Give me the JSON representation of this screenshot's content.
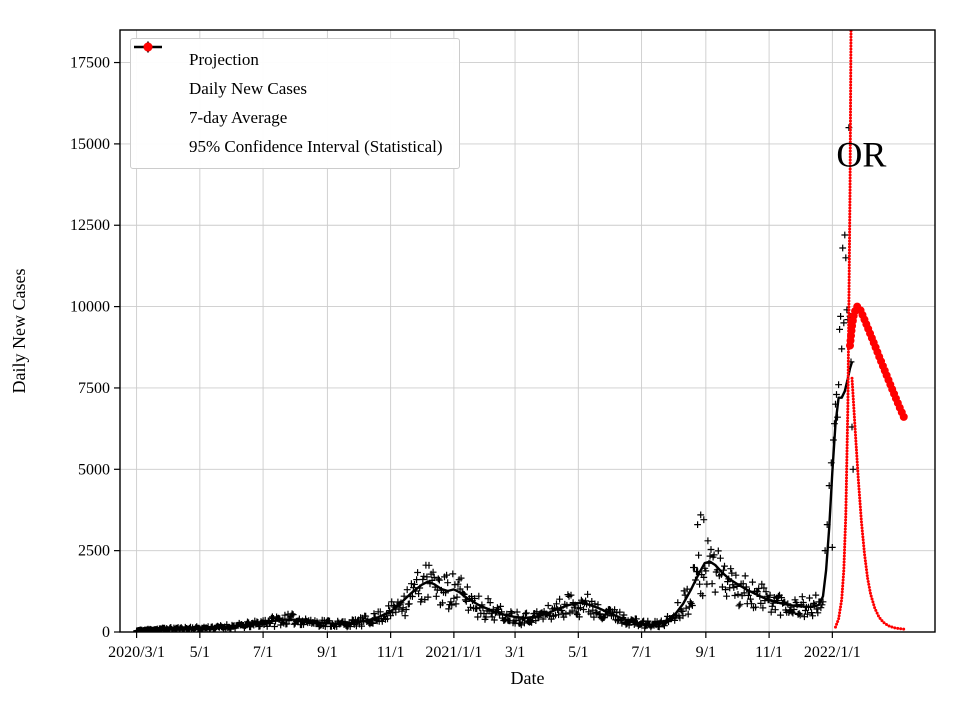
{
  "chart_data": {
    "type": "line+scatter",
    "title": "",
    "xlabel": "Date",
    "ylabel": "Daily New Cases",
    "x_unit": "days since 2020/3/1",
    "xlim": [
      -16,
      770
    ],
    "ylim": [
      0,
      18500
    ],
    "grid": true,
    "grid_color": "#cccccc",
    "yticks": [
      0,
      2500,
      5000,
      7500,
      10000,
      12500,
      15000,
      17500
    ],
    "xticks": [
      {
        "day": 0,
        "label": "2020/3/1"
      },
      {
        "day": 61,
        "label": "5/1"
      },
      {
        "day": 122,
        "label": "7/1"
      },
      {
        "day": 184,
        "label": "9/1"
      },
      {
        "day": 245,
        "label": "11/1"
      },
      {
        "day": 306,
        "label": "2021/1/1"
      },
      {
        "day": 365,
        "label": "3/1"
      },
      {
        "day": 426,
        "label": "5/1"
      },
      {
        "day": 487,
        "label": "7/1"
      },
      {
        "day": 549,
        "label": "9/1"
      },
      {
        "day": 610,
        "label": "11/1"
      },
      {
        "day": 671,
        "label": "2022/1/1"
      }
    ],
    "annotation": {
      "text": "OR",
      "day": 699,
      "value": 14300
    },
    "legend": {
      "position": "upper-left",
      "items": [
        {
          "label": "Projection",
          "marker": "dot",
          "color": "#ff0000"
        },
        {
          "label": "Daily New Cases",
          "marker": "plus",
          "color": "#000000"
        },
        {
          "label": "7-day Average",
          "marker": "line",
          "color": "#000000"
        },
        {
          "label": "95% Confidence Interval (Statistical)",
          "marker": "dot",
          "color": "#ff0000"
        }
      ]
    },
    "series": {
      "avg_7day": {
        "name": "7-day Average",
        "color": "#000000",
        "points": [
          [
            0,
            40
          ],
          [
            8,
            60
          ],
          [
            16,
            80
          ],
          [
            24,
            95
          ],
          [
            32,
            100
          ],
          [
            45,
            110
          ],
          [
            61,
            120
          ],
          [
            75,
            135
          ],
          [
            90,
            165
          ],
          [
            105,
            210
          ],
          [
            118,
            265
          ],
          [
            128,
            330
          ],
          [
            138,
            370
          ],
          [
            148,
            390
          ],
          [
            158,
            360
          ],
          [
            170,
            310
          ],
          [
            184,
            270
          ],
          [
            196,
            250
          ],
          [
            208,
            270
          ],
          [
            220,
            335
          ],
          [
            232,
            440
          ],
          [
            245,
            630
          ],
          [
            255,
            900
          ],
          [
            265,
            1200
          ],
          [
            275,
            1450
          ],
          [
            281,
            1550
          ],
          [
            287,
            1470
          ],
          [
            294,
            1320
          ],
          [
            300,
            1260
          ],
          [
            306,
            1310
          ],
          [
            312,
            1210
          ],
          [
            320,
            1010
          ],
          [
            330,
            830
          ],
          [
            342,
            660
          ],
          [
            355,
            530
          ],
          [
            365,
            460
          ],
          [
            375,
            430
          ],
          [
            385,
            470
          ],
          [
            395,
            560
          ],
          [
            405,
            690
          ],
          [
            415,
            810
          ],
          [
            423,
            880
          ],
          [
            428,
            900
          ],
          [
            435,
            850
          ],
          [
            445,
            740
          ],
          [
            455,
            600
          ],
          [
            465,
            460
          ],
          [
            475,
            340
          ],
          [
            487,
            255
          ],
          [
            495,
            215
          ],
          [
            503,
            235
          ],
          [
            511,
            335
          ],
          [
            519,
            530
          ],
          [
            527,
            860
          ],
          [
            535,
            1320
          ],
          [
            542,
            1780
          ],
          [
            548,
            2120
          ],
          [
            553,
            2160
          ],
          [
            558,
            2060
          ],
          [
            565,
            1820
          ],
          [
            572,
            1620
          ],
          [
            580,
            1460
          ],
          [
            588,
            1310
          ],
          [
            596,
            1180
          ],
          [
            604,
            1060
          ],
          [
            612,
            960
          ],
          [
            620,
            890
          ],
          [
            628,
            840
          ],
          [
            636,
            800
          ],
          [
            644,
            780
          ],
          [
            652,
            770
          ],
          [
            658,
            830
          ],
          [
            662,
            1100
          ],
          [
            665,
            1900
          ],
          [
            668,
            3200
          ],
          [
            671,
            4900
          ],
          [
            674,
            6400
          ],
          [
            677,
            7200
          ],
          [
            680,
            7200
          ],
          [
            683,
            7400
          ],
          [
            686,
            7800
          ],
          [
            688,
            8100
          ],
          [
            690,
            8300
          ]
        ]
      },
      "daily_scatter": {
        "name": "Daily New Cases",
        "color": "#000000",
        "marker": "plus",
        "generate": {
          "from": "avg_7day",
          "start_day": 0,
          "end_day": 662,
          "step": 1,
          "jitter": 0.42,
          "seed": 11
        },
        "outliers": [
          [
            541,
            3300
          ],
          [
            544,
            3600
          ],
          [
            547,
            3450
          ],
          [
            664,
            2500
          ],
          [
            666,
            3300
          ],
          [
            668,
            4500
          ],
          [
            670,
            5200
          ],
          [
            671,
            2600
          ],
          [
            672,
            5900
          ],
          [
            673,
            6400
          ],
          [
            674,
            7000
          ],
          [
            675,
            7300
          ],
          [
            676,
            6600
          ],
          [
            677,
            7600
          ],
          [
            678,
            9300
          ],
          [
            679,
            9700
          ],
          [
            680,
            8700
          ],
          [
            681,
            11800
          ],
          [
            682,
            9500
          ],
          [
            683,
            12200
          ],
          [
            684,
            11500
          ],
          [
            685,
            9900
          ],
          [
            686,
            9600
          ],
          [
            687,
            15500
          ],
          [
            688,
            9700
          ],
          [
            689,
            8300
          ],
          [
            690,
            6300
          ],
          [
            691,
            5000
          ]
        ]
      },
      "projection": {
        "name": "Projection",
        "color": "#ff0000",
        "points": [
          [
            688,
            8800
          ],
          [
            690,
            9400
          ],
          [
            692,
            9800
          ],
          [
            695,
            10000
          ],
          [
            698,
            9900
          ],
          [
            702,
            9600
          ],
          [
            707,
            9200
          ],
          [
            712,
            8800
          ],
          [
            717,
            8400
          ],
          [
            722,
            8000
          ],
          [
            727,
            7600
          ],
          [
            732,
            7200
          ],
          [
            736,
            6900
          ],
          [
            740,
            6600
          ]
        ]
      },
      "ci_upper": {
        "name": "95% CI upper",
        "color": "#ff0000",
        "points": [
          [
            674,
            150
          ],
          [
            677,
            400
          ],
          [
            680,
            1000
          ],
          [
            682,
            1900
          ],
          [
            684,
            3600
          ],
          [
            686,
            7000
          ],
          [
            688,
            13500
          ],
          [
            689,
            18500
          ],
          [
            690,
            27000
          ]
        ]
      },
      "ci_lower": {
        "name": "95% CI lower",
        "color": "#ff0000",
        "points": [
          [
            690,
            7800
          ],
          [
            693,
            6200
          ],
          [
            696,
            4700
          ],
          [
            699,
            3400
          ],
          [
            702,
            2400
          ],
          [
            705,
            1650
          ],
          [
            708,
            1150
          ],
          [
            712,
            720
          ],
          [
            716,
            460
          ],
          [
            720,
            300
          ],
          [
            725,
            195
          ],
          [
            730,
            135
          ],
          [
            735,
            105
          ],
          [
            740,
            90
          ]
        ]
      }
    }
  }
}
